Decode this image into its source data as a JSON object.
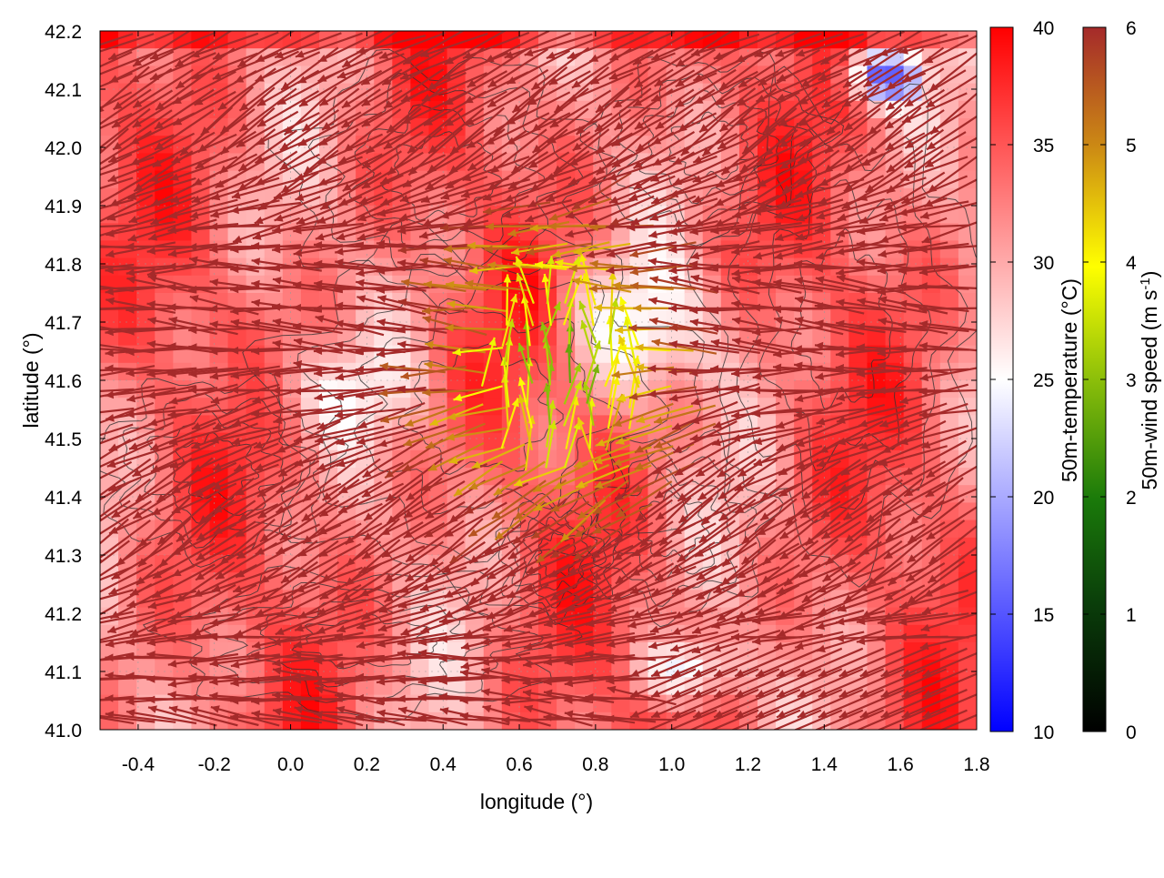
{
  "chart_data": {
    "type": "heatmap",
    "title": "",
    "xlabel": "longitude (°)",
    "ylabel": "latitude (°)",
    "xlim": [
      -0.5,
      1.8
    ],
    "ylim": [
      41.0,
      42.2
    ],
    "xticks": [
      -0.4,
      -0.2,
      0.0,
      0.2,
      0.4,
      0.6,
      0.8,
      1.0,
      1.2,
      1.4,
      1.6,
      1.8
    ],
    "xtick_labels": [
      "-0.4",
      "-0.2",
      "0.0",
      "0.2",
      "0.4",
      "0.6",
      "0.8",
      "1.0",
      "1.2",
      "1.4",
      "1.6",
      "1.8"
    ],
    "yticks": [
      41.0,
      41.1,
      41.2,
      41.3,
      41.4,
      41.5,
      41.6,
      41.7,
      41.8,
      41.9,
      42.0,
      42.1,
      42.2
    ],
    "ytick_labels": [
      "41.0",
      "41.1",
      "41.2",
      "41.3",
      "41.4",
      "41.5",
      "41.6",
      "41.7",
      "41.8",
      "41.9",
      "42.0",
      "42.1",
      "42.2"
    ],
    "grid": true,
    "background_layer": {
      "label": "50m-temperature (°C)",
      "cbrange": [
        10,
        40
      ],
      "tick_labels": [
        "10",
        "15",
        "20",
        "25",
        "30",
        "35",
        "40"
      ],
      "palette": [
        "#0000ff",
        "#ffffff",
        "#ff0000"
      ]
    },
    "vector_layer": {
      "label_main": "50m-wind speed (m s",
      "label_sup": "-1",
      "label_end": ")",
      "cbrange": [
        0,
        6
      ],
      "tick_labels": [
        "0",
        "1",
        "2",
        "3",
        "4",
        "5",
        "6"
      ],
      "palette": [
        "#000000",
        "#0b6e0b",
        "#7db80a",
        "#ffff00",
        "#cc8a14",
        "#a52a2a"
      ]
    },
    "contours": "terrain elevation (unlabeled)"
  }
}
